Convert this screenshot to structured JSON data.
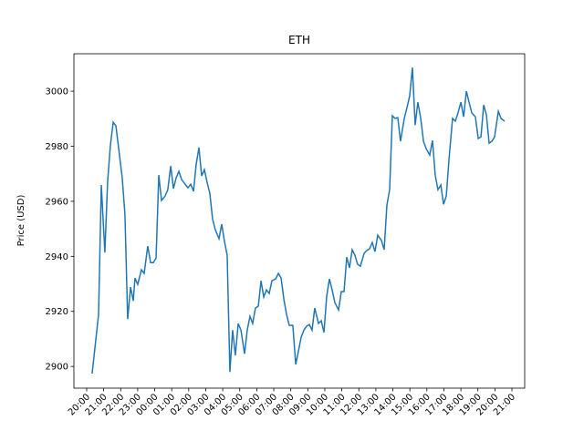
{
  "chart_data": {
    "type": "line",
    "title": "ETH",
    "y_label": "Price (USD)",
    "color": "#1f77b4",
    "x": [
      0.32,
      0.7,
      0.86,
      1.07,
      1.23,
      1.39,
      1.56,
      1.72,
      2.09,
      2.25,
      2.41,
      2.58,
      2.74,
      2.84,
      3.0,
      3.22,
      3.38,
      3.59,
      3.76,
      3.92,
      4.08,
      4.24,
      4.4,
      4.61,
      4.77,
      4.94,
      5.1,
      5.26,
      5.42,
      5.58,
      5.79,
      5.95,
      6.12,
      6.28,
      6.44,
      6.6,
      6.76,
      6.92,
      7.08,
      7.24,
      7.4,
      7.56,
      7.78,
      7.94,
      8.1,
      8.26,
      8.42,
      8.58,
      8.74,
      8.91,
      9.07,
      9.28,
      9.44,
      9.6,
      9.76,
      9.92,
      10.09,
      10.25,
      10.41,
      10.57,
      10.73,
      10.89,
      11.11,
      11.27,
      11.43,
      11.59,
      11.75,
      11.91,
      12.12,
      12.29,
      12.45,
      12.61,
      12.77,
      12.93,
      13.09,
      13.25,
      13.41,
      13.63,
      13.79,
      13.95,
      14.11,
      14.27,
      14.43,
      14.59,
      14.81,
      14.97,
      15.13,
      15.29,
      15.45,
      15.61,
      15.77,
      15.93,
      16.09,
      16.31,
      16.47,
      16.63,
      16.79,
      16.95,
      17.11,
      17.33,
      17.49,
      17.65,
      17.81,
      17.97,
      18.13,
      18.29,
      18.45,
      18.67,
      18.83,
      18.99,
      19.15,
      19.31,
      19.47,
      19.64,
      19.8,
      19.96,
      20.17,
      20.33,
      20.49,
      20.65,
      20.82,
      20.98,
      21.14,
      21.3,
      21.51,
      21.67,
      21.83,
      22.0,
      22.16,
      22.32,
      22.48,
      22.64,
      22.85,
      23.02,
      23.18,
      23.34,
      23.5,
      23.66,
      23.82,
      23.98,
      24.2,
      24.36,
      24.57
    ],
    "values": [
      2897.4,
      2918.9,
      2965.9,
      2941.4,
      2966.9,
      2980.1,
      2988.7,
      2987.4,
      2968.5,
      2955.3,
      2917.2,
      2928.8,
      2923.8,
      2932.1,
      2929.8,
      2935.1,
      2933.8,
      2943.7,
      2937.7,
      2937.7,
      2939.4,
      2969.5,
      2960.3,
      2961.9,
      2964.2,
      2972.8,
      2964.6,
      2968.5,
      2970.9,
      2967.9,
      2966.2,
      2964.9,
      2966.2,
      2963.6,
      2973.5,
      2979.5,
      2969.2,
      2971.5,
      2966.9,
      2962.9,
      2953.6,
      2949.7,
      2946.4,
      2951.7,
      2945.4,
      2940.4,
      2898.0,
      2913.2,
      2904.0,
      2915.6,
      2913.2,
      2904.6,
      2913.2,
      2918.2,
      2915.6,
      2921.2,
      2921.9,
      2931.1,
      2925.2,
      2927.8,
      2926.5,
      2931.1,
      2931.8,
      2933.8,
      2932.1,
      2924.5,
      2918.9,
      2914.9,
      2914.9,
      2900.7,
      2905.6,
      2910.6,
      2913.2,
      2914.6,
      2915.2,
      2913.2,
      2921.2,
      2915.6,
      2916.6,
      2912.3,
      2925.5,
      2931.8,
      2927.8,
      2923.2,
      2920.5,
      2927.2,
      2927.2,
      2939.7,
      2935.8,
      2942.4,
      2940.4,
      2937.1,
      2936.4,
      2941.1,
      2942.1,
      2942.7,
      2945.0,
      2941.7,
      2947.7,
      2945.7,
      2942.4,
      2958.6,
      2964.2,
      2991.1,
      2990.1,
      2990.4,
      2981.8,
      2990.1,
      2994.0,
      2998.3,
      3008.6,
      2987.7,
      2996.0,
      2990.1,
      2981.8,
      2979.1,
      2976.8,
      2982.1,
      2969.5,
      2964.2,
      2965.9,
      2958.9,
      2961.9,
      2975.2,
      2990.1,
      2989.1,
      2992.1,
      2996.0,
      2990.7,
      3000.0,
      2996.0,
      2992.1,
      2990.7,
      2982.8,
      2983.4,
      2995.0,
      2991.4,
      2981.1,
      2981.8,
      2983.4,
      2992.7,
      2990.1,
      2989.1
    ],
    "xlim": [
      -0.75,
      25.75
    ],
    "xticks": [
      {
        "value": 0,
        "label": "20:00"
      },
      {
        "value": 1,
        "label": "21:00"
      },
      {
        "value": 2,
        "label": "22:00"
      },
      {
        "value": 3,
        "label": "23:00"
      },
      {
        "value": 4,
        "label": "00:00"
      },
      {
        "value": 5,
        "label": "01:00"
      },
      {
        "value": 6,
        "label": "02:00"
      },
      {
        "value": 7,
        "label": "03:00"
      },
      {
        "value": 8,
        "label": "04:00"
      },
      {
        "value": 9,
        "label": "05:00"
      },
      {
        "value": 10,
        "label": "06:00"
      },
      {
        "value": 11,
        "label": "07:00"
      },
      {
        "value": 12,
        "label": "08:00"
      },
      {
        "value": 13,
        "label": "09:00"
      },
      {
        "value": 14,
        "label": "10:00"
      },
      {
        "value": 15,
        "label": "11:00"
      },
      {
        "value": 16,
        "label": "12:00"
      },
      {
        "value": 17,
        "label": "13:00"
      },
      {
        "value": 18,
        "label": "14:00"
      },
      {
        "value": 19,
        "label": "15:00"
      },
      {
        "value": 20,
        "label": "16:00"
      },
      {
        "value": 21,
        "label": "17:00"
      },
      {
        "value": 22,
        "label": "18:00"
      },
      {
        "value": 23,
        "label": "19:00"
      },
      {
        "value": 24,
        "label": "20:00"
      },
      {
        "value": 25,
        "label": "21:00"
      }
    ],
    "ylim": [
      2892.1,
      3013.6
    ],
    "yticks": [
      2900,
      2920,
      2940,
      2960,
      2980,
      3000
    ]
  }
}
